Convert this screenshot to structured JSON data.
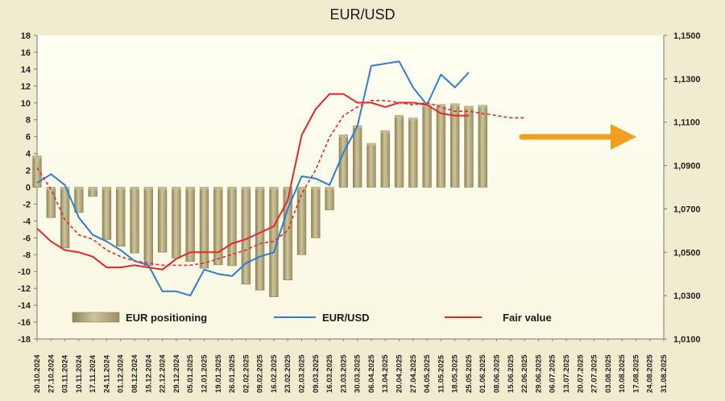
{
  "chart_data": {
    "type": "bar+line",
    "title": "EUR/USD",
    "categories": [
      "20.10.2024",
      "27.10.2024",
      "03.11.2024",
      "10.11.2024",
      "17.11.2024",
      "24.11.2024",
      "01.12.2024",
      "08.12.2024",
      "15.12.2024",
      "22.12.2024",
      "29.12.2024",
      "05.01.2025",
      "12.01.2025",
      "19.01.2025",
      "26.01.2025",
      "02.02.2025",
      "09.02.2025",
      "16.02.2025",
      "23.02.2025",
      "02.03.2025",
      "09.03.2025",
      "16.03.2025",
      "23.03.2025",
      "30.03.2025",
      "06.04.2025",
      "13.04.2025",
      "20.04.2025",
      "27.04.2025",
      "04.05.2025",
      "11.05.2025",
      "18.05.2025",
      "25.05.2025",
      "01.06.2025",
      "08.06.2025",
      "15.06.2025",
      "22.06.2025",
      "29.06.2025",
      "06.07.2025",
      "13.07.2025",
      "20.07.2025",
      "27.07.2025",
      "03.08.2025",
      "10.08.2025",
      "17.08.2025",
      "24.08.2025",
      "31.08.2025"
    ],
    "y_left": {
      "lim": [
        -18,
        18
      ],
      "ticks": [
        -18,
        -16,
        -14,
        -12,
        -10,
        -8,
        -6,
        -4,
        -2,
        0,
        2,
        4,
        6,
        8,
        10,
        12,
        14,
        16,
        18
      ]
    },
    "y_right": {
      "lim": [
        1.01,
        1.15
      ],
      "tick_labels": [
        "1,0100",
        "1,0300",
        "1,0500",
        "1,0700",
        "1,0900",
        "1,1100",
        "1,1300",
        "1,1500"
      ]
    },
    "series": [
      {
        "name": "EUR positioning",
        "kind": "bar",
        "axis": "left",
        "values": [
          3.7,
          -3.6,
          -7.2,
          -3.0,
          -1.1,
          -6.2,
          -7.0,
          -7.8,
          -9.3,
          -7.7,
          -8.4,
          -8.8,
          -9.6,
          -9.2,
          -9.3,
          -11.5,
          -12.2,
          -13.0,
          -11.0,
          -8.0,
          -6.0,
          -2.7,
          6.2,
          7.3,
          5.2,
          6.7,
          8.5,
          8.2,
          9.8,
          9.8,
          9.9,
          9.6,
          9.7,
          null,
          null,
          null,
          null,
          null,
          null,
          null,
          null,
          null,
          null,
          null,
          null,
          null
        ]
      },
      {
        "name": "EUR/USD",
        "kind": "line",
        "axis": "right",
        "values": [
          1.082,
          1.086,
          1.081,
          1.066,
          1.058,
          1.055,
          1.051,
          1.046,
          1.044,
          1.032,
          1.032,
          1.03,
          1.042,
          1.04,
          1.039,
          1.045,
          1.048,
          1.05,
          1.07,
          1.085,
          1.084,
          1.081,
          1.096,
          1.108,
          1.136,
          1.137,
          1.138,
          1.126,
          1.118,
          1.132,
          1.126,
          1.133,
          null,
          null,
          null,
          null,
          null,
          null,
          null,
          null,
          null,
          null,
          null,
          null,
          null,
          null
        ]
      },
      {
        "name": "Fair value",
        "kind": "line",
        "axis": "right",
        "values": [
          1.061,
          1.055,
          1.051,
          1.05,
          1.048,
          1.043,
          1.043,
          1.044,
          1.043,
          1.042,
          1.047,
          1.05,
          1.05,
          1.05,
          1.054,
          1.056,
          1.059,
          1.062,
          1.074,
          1.104,
          1.116,
          1.123,
          1.123,
          1.119,
          1.119,
          1.117,
          1.119,
          1.119,
          1.118,
          1.114,
          1.113,
          1.113,
          null,
          null,
          null,
          null,
          null,
          null,
          null,
          null,
          null,
          null,
          null,
          null,
          null,
          null
        ]
      },
      {
        "kind": "dashed-line",
        "axis": "right",
        "color": "#e8272a",
        "values": [
          1.089,
          1.079,
          1.065,
          1.058,
          1.056,
          1.051,
          1.048,
          1.046,
          1.045,
          1.044,
          1.044,
          1.044,
          1.045,
          1.047,
          1.049,
          1.051,
          1.054,
          1.055,
          1.06,
          1.077,
          1.088,
          1.103,
          1.113,
          1.117,
          1.12,
          1.12,
          1.119,
          1.118,
          1.119,
          1.117,
          1.115,
          1.115,
          1.114,
          1.113,
          1.112,
          1.112,
          null,
          null,
          null,
          null,
          null,
          null,
          null,
          null,
          null,
          null
        ]
      }
    ],
    "annotation": {
      "kind": "arrow",
      "color": "#f0a020",
      "direction": "right"
    },
    "legend": {
      "position": "bottom",
      "items": [
        "EUR positioning",
        "EUR/USD",
        "Fair value"
      ]
    },
    "colors": {
      "bar": "#b3a878",
      "eurusd": "#2f7fd0",
      "fair": "#e8272a",
      "background": "#f1ecd0",
      "plot_background": "#fffff0"
    }
  }
}
